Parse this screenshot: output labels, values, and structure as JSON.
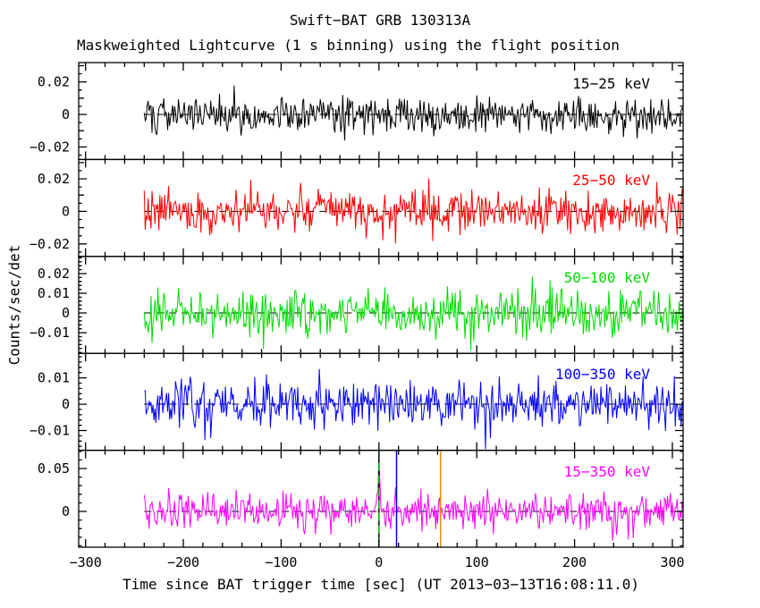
{
  "chart_data": {
    "type": "line",
    "title": "Swift−BAT GRB 130313A",
    "subtitle": "Maskweighted Lightcurve (1 s binning) using the flight position",
    "xlabel": "Time since BAT trigger time [sec] (UT 2013−03−13T16:08:11.0)",
    "ylabel": "Counts/sec/det",
    "xlim": [
      -307,
      311
    ],
    "x_ticks": [
      {
        "v": -300,
        "label": "−300"
      },
      {
        "v": -200,
        "label": "−200"
      },
      {
        "v": -100,
        "label": "−100"
      },
      {
        "v": 0,
        "label": "0"
      },
      {
        "v": 100,
        "label": "100"
      },
      {
        "v": 200,
        "label": "200"
      },
      {
        "v": 300,
        "label": "300"
      }
    ],
    "x_minor_step": 20,
    "time_bin_sec": 1,
    "data_t_start": -240,
    "data_t_end": 311,
    "grid": false,
    "panels": [
      {
        "label": "15−25 keV",
        "color": "#000000",
        "ylim": [
          -0.0277,
          0.0319
        ],
        "yticks": [
          {
            "v": 0.02,
            "label": "0.02"
          },
          {
            "v": 0,
            "label": "0"
          },
          {
            "v": -0.02,
            "label": "−0.02"
          }
        ],
        "ytick_minor_step": 0.005,
        "ytick_mid_step": 0.01,
        "mean": 0,
        "noise_sigma": 0.0055,
        "seed": 101
      },
      {
        "label": "25−50 keV",
        "color": "#ff0000",
        "ylim": [
          -0.0277,
          0.0319
        ],
        "yticks": [
          {
            "v": 0.02,
            "label": "0.02"
          },
          {
            "v": 0,
            "label": "0"
          },
          {
            "v": -0.02,
            "label": "−0.02"
          }
        ],
        "ytick_minor_step": 0.005,
        "ytick_mid_step": 0.01,
        "mean": 0,
        "noise_sigma": 0.0065,
        "seed": 202
      },
      {
        "label": "50−100 keV",
        "color": "#00dd00",
        "ylim": [
          -0.0205,
          0.0287
        ],
        "yticks": [
          {
            "v": 0.02,
            "label": "0.02"
          },
          {
            "v": 0.01,
            "label": "0.01"
          },
          {
            "v": 0,
            "label": "0"
          },
          {
            "v": -0.01,
            "label": "−0.01"
          }
        ],
        "ytick_minor_step": 0.002,
        "ytick_mid_step": null,
        "mean": 0,
        "noise_sigma": 0.0055,
        "seed": 303
      },
      {
        "label": "100−350 keV",
        "color": "#0000ff",
        "ylim": [
          -0.0175,
          0.0193
        ],
        "yticks": [
          {
            "v": 0.01,
            "label": "0.01"
          },
          {
            "v": 0,
            "label": "0"
          },
          {
            "v": -0.01,
            "label": "−0.01"
          }
        ],
        "ytick_minor_step": 0.002,
        "ytick_mid_step": null,
        "mean": 0,
        "noise_sigma": 0.0045,
        "seed": 404
      },
      {
        "label": "15−350 keV",
        "color": "#ff00ff",
        "ylim": [
          -0.0417,
          0.0713
        ],
        "yticks": [
          {
            "v": 0.05,
            "label": "0.05"
          },
          {
            "v": 0,
            "label": "0"
          }
        ],
        "ytick_minor_step": 0.01,
        "ytick_mid_step": null,
        "mean": 0,
        "noise_sigma": 0.011,
        "seed": 505,
        "burst_spike": {
          "t": 0,
          "peak": 0.05,
          "width_sec": 1.2
        }
      }
    ],
    "zero_line": {
      "color": "#000000",
      "style": "dashed"
    },
    "event_markers": [
      {
        "t": 0,
        "style": "dashed",
        "color": "#00c000",
        "color2": "#000000"
      },
      {
        "t": 18,
        "style": "solid",
        "color": "#0000dd"
      },
      {
        "t": 63,
        "style": "solid",
        "color": "#ee8800"
      }
    ],
    "note": "All five energy-band panels show background-level maskweighted noise scattered about zero; a weak narrow spike near t=0 is visible in the 15−350 keV panel, with vertical event-marker lines at t≈0 (green dashed), t≈18 s (blue) and t≈63 s (orange)."
  }
}
